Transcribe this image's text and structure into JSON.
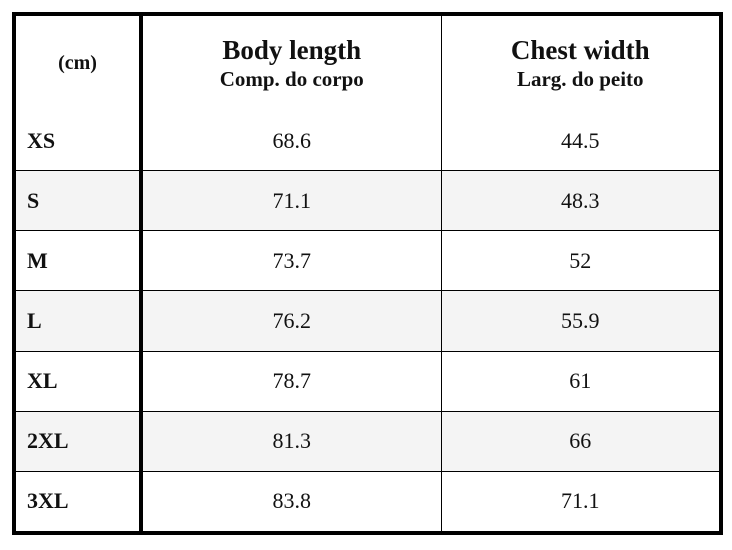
{
  "table": {
    "unit_label": "(cm)",
    "columns": [
      {
        "title": "Body length",
        "subtitle": "Comp. do corpo"
      },
      {
        "title": "Chest width",
        "subtitle": "Larg. do peito"
      }
    ],
    "rows": [
      {
        "size": "XS",
        "body_length": "68.6",
        "chest_width": "44.5"
      },
      {
        "size": "S",
        "body_length": "71.1",
        "chest_width": "48.3"
      },
      {
        "size": "M",
        "body_length": "73.7",
        "chest_width": "52"
      },
      {
        "size": "L",
        "body_length": "76.2",
        "chest_width": "55.9"
      },
      {
        "size": "XL",
        "body_length": "78.7",
        "chest_width": "61"
      },
      {
        "size": "2XL",
        "body_length": "81.3",
        "chest_width": "66"
      },
      {
        "size": "3XL",
        "body_length": "83.8",
        "chest_width": "71.1"
      }
    ]
  }
}
